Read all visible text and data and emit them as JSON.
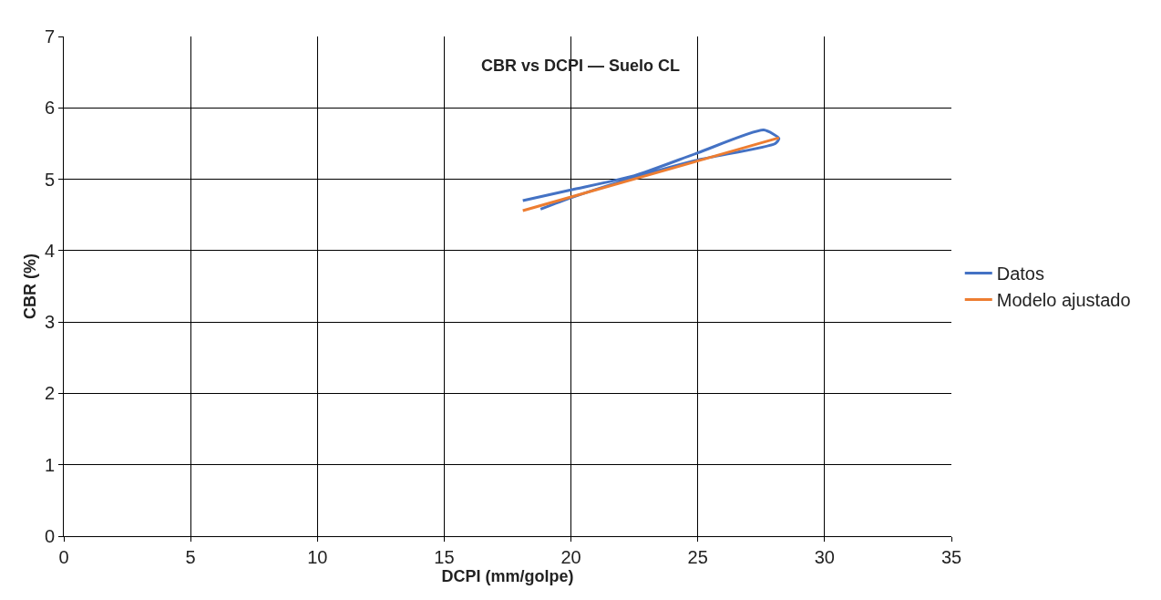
{
  "chart_data": {
    "type": "line",
    "title": "CBR vs DCPI — Suelo CL",
    "xlabel": "DCPI (mm/golpe)",
    "ylabel": "CBR (%)",
    "series": [
      {
        "name": "Datos",
        "color": "#4472c4",
        "x": [
          18.1,
          20,
          22.5,
          25,
          27.6,
          28.2,
          28.05,
          25,
          22,
          20,
          18.8
        ],
        "values": [
          4.7,
          4.85,
          5.05,
          5.37,
          5.69,
          5.57,
          5.5,
          5.27,
          4.97,
          4.74,
          4.58
        ]
      },
      {
        "name": "Modelo ajustado",
        "color": "#ed7d31",
        "x": [
          18.1,
          28.2
        ],
        "values": [
          4.56,
          5.58
        ]
      }
    ],
    "xlim": [
      0,
      35
    ],
    "xticks": [
      0,
      5,
      10,
      15,
      20,
      25,
      30,
      35
    ],
    "ylim": [
      0,
      7
    ],
    "yticks": [
      0,
      1,
      2,
      3,
      4,
      5,
      6,
      7
    ],
    "grid": true,
    "legend": "right",
    "marker": "none",
    "line_style": "solid"
  }
}
